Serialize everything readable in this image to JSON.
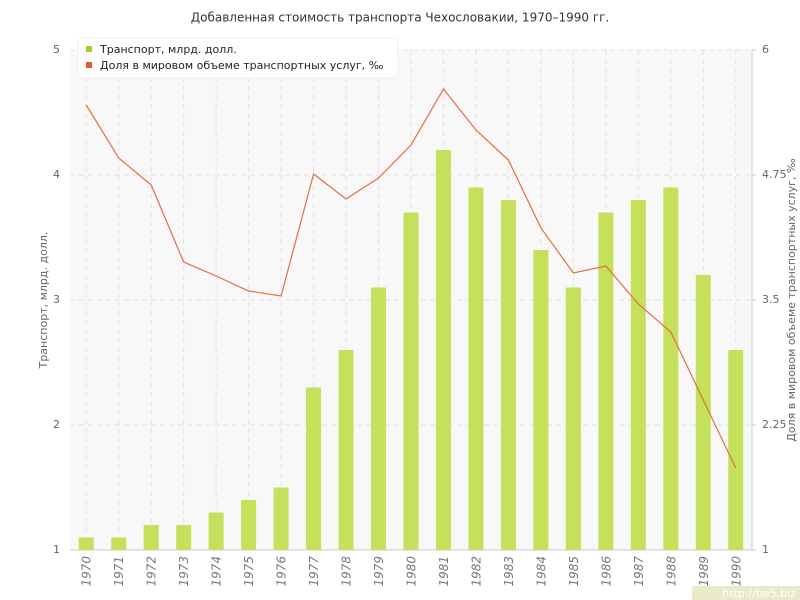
{
  "chart_data": {
    "type": "bar_line",
    "title": "Добавленная стоимость транспорта Чехословакии, 1970–1990 гг.",
    "ylabel": "Транспорт, млрд. долл.",
    "y2label": "Доля в мировом объеме транспортных услуг, ‰",
    "categories": [
      "1970",
      "1971",
      "1972",
      "1973",
      "1974",
      "1975",
      "1976",
      "1977",
      "1978",
      "1979",
      "1980",
      "1981",
      "1982",
      "1983",
      "1984",
      "1985",
      "1986",
      "1987",
      "1988",
      "1989",
      "1990"
    ],
    "series": [
      {
        "name": "Транспорт, млрд. долл.",
        "type": "bar",
        "color": "#c5e05a",
        "values": [
          1.1,
          1.1,
          1.2,
          1.2,
          1.3,
          1.4,
          1.5,
          2.3,
          2.6,
          3.1,
          3.7,
          4.2,
          3.9,
          3.8,
          3.4,
          3.1,
          3.7,
          3.8,
          3.9,
          3.2,
          2.6
        ]
      },
      {
        "name": "Доля в мировом объеме транспортных услуг, ‰",
        "type": "line",
        "axis": "y2",
        "color": "#e07040",
        "values": [
          5.45,
          4.92,
          4.65,
          3.88,
          3.74,
          3.59,
          3.54,
          4.76,
          4.51,
          4.72,
          5.05,
          5.61,
          5.2,
          4.9,
          4.22,
          3.77,
          3.84,
          3.46,
          3.18,
          2.5,
          1.82
        ]
      }
    ],
    "ylim": [
      1,
      5
    ],
    "yticks": [
      1,
      2,
      3,
      4,
      5
    ],
    "y2lim": [
      1,
      6
    ],
    "y2ticks": [
      1,
      2.25,
      3.5,
      4.75,
      6
    ],
    "grid": true,
    "legend": "top-left",
    "watermark": "http://be5.biz"
  }
}
